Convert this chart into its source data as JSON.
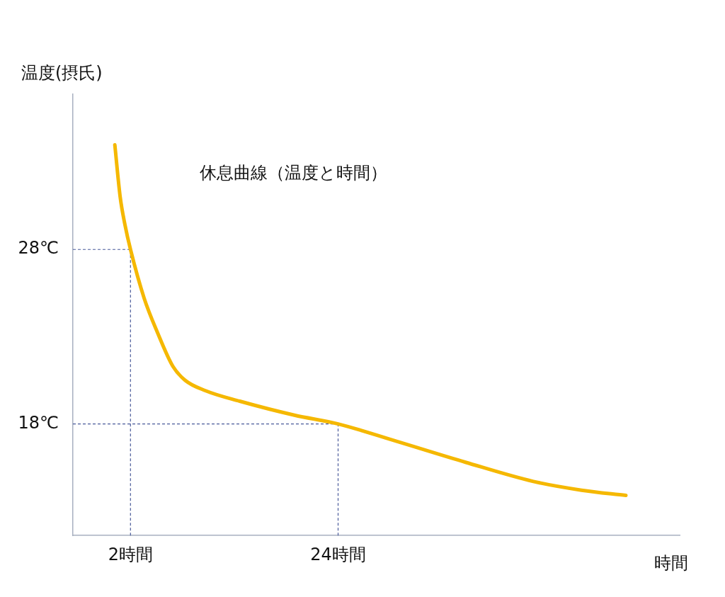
{
  "chart_data": {
    "type": "line",
    "ylabel": "温度(摂氏)",
    "xlabel": "時間",
    "annotations": [
      "休息曲線（温度と時間）"
    ],
    "xlim": [
      -4.1,
      60.2
    ],
    "ylim": [
      11.6,
      36.9
    ],
    "xticks": [
      {
        "value": 2,
        "label": "2時間"
      },
      {
        "value": 24,
        "label": "24時間"
      }
    ],
    "yticks": [
      {
        "value": 18,
        "label": "18℃"
      },
      {
        "value": 28,
        "label": "28℃"
      }
    ],
    "grid": false,
    "legend": false,
    "marker": "none",
    "line_style": "solid",
    "ref_lines": [
      {
        "axis": "y",
        "value": 28,
        "color": "#4a5a9a",
        "line_style": "dashed"
      },
      {
        "axis": "y",
        "value": 18,
        "color": "#4a5a9a",
        "line_style": "dashed"
      },
      {
        "axis": "x",
        "value": 2,
        "color": "#4a5a9a",
        "line_style": "dashed"
      },
      {
        "axis": "x",
        "value": 24,
        "color": "#4a5a9a",
        "line_style": "dashed"
      }
    ],
    "series": [
      {
        "color": "#f5b800",
        "x": [
          0.34,
          0.91,
          1.42,
          2,
          3.45,
          4.89,
          6.49,
          7.79,
          9.96,
          13.58,
          19.37,
          24,
          30.2,
          37.5,
          44.7,
          49.8,
          54.5
        ],
        "values": [
          34.0,
          31.0,
          29.4,
          28,
          25.2,
          23.2,
          21.3,
          20.5,
          19.9,
          19.3,
          18.5,
          18,
          17.0,
          15.8,
          14.7,
          14.2,
          13.9
        ]
      }
    ]
  }
}
